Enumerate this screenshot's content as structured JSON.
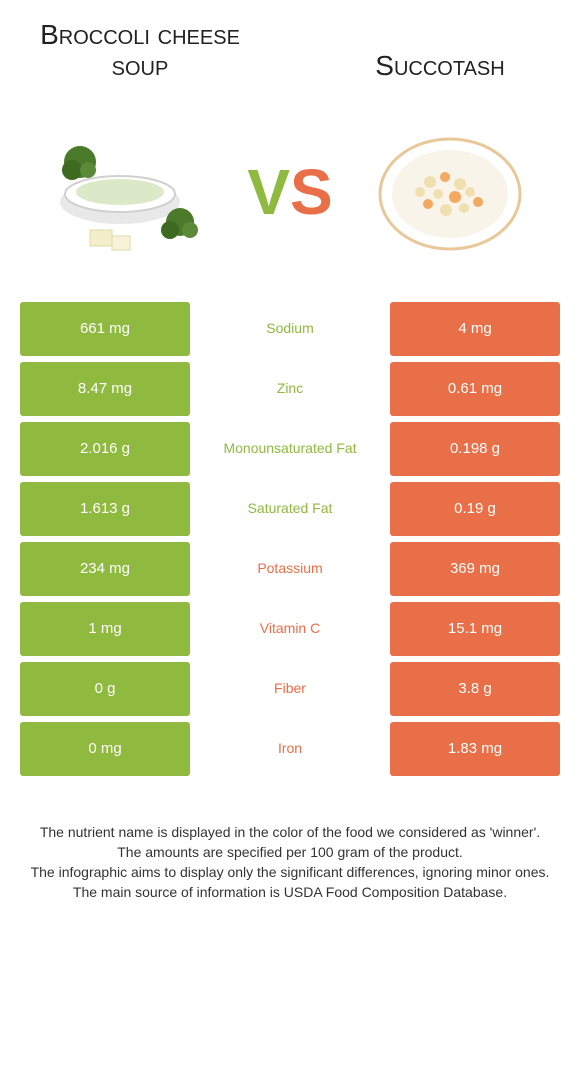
{
  "colors": {
    "left": "#8fb93f",
    "right": "#e86f47"
  },
  "titles": {
    "left": "Broccoli cheese soup",
    "right": "Succotash",
    "vs_v": "V",
    "vs_s": "S"
  },
  "rows": [
    {
      "left": "661 mg",
      "mid": "Sodium",
      "right": "4 mg",
      "winner": "left"
    },
    {
      "left": "8.47 mg",
      "mid": "Zinc",
      "right": "0.61 mg",
      "winner": "left"
    },
    {
      "left": "2.016 g",
      "mid": "Monounsaturated Fat",
      "right": "0.198 g",
      "winner": "left"
    },
    {
      "left": "1.613 g",
      "mid": "Saturated Fat",
      "right": "0.19 g",
      "winner": "left"
    },
    {
      "left": "234 mg",
      "mid": "Potassium",
      "right": "369 mg",
      "winner": "right"
    },
    {
      "left": "1 mg",
      "mid": "Vitamin C",
      "right": "15.1 mg",
      "winner": "right"
    },
    {
      "left": "0 g",
      "mid": "Fiber",
      "right": "3.8 g",
      "winner": "right"
    },
    {
      "left": "0 mg",
      "mid": "Iron",
      "right": "1.83 mg",
      "winner": "right"
    }
  ],
  "footer": [
    "The nutrient name is displayed in the color of the food we considered as 'winner'.",
    "The amounts are specified per 100 gram of the product.",
    "The infographic aims to display only the significant differences, ignoring minor ones.",
    "The main source of information is USDA Food Composition Database."
  ]
}
